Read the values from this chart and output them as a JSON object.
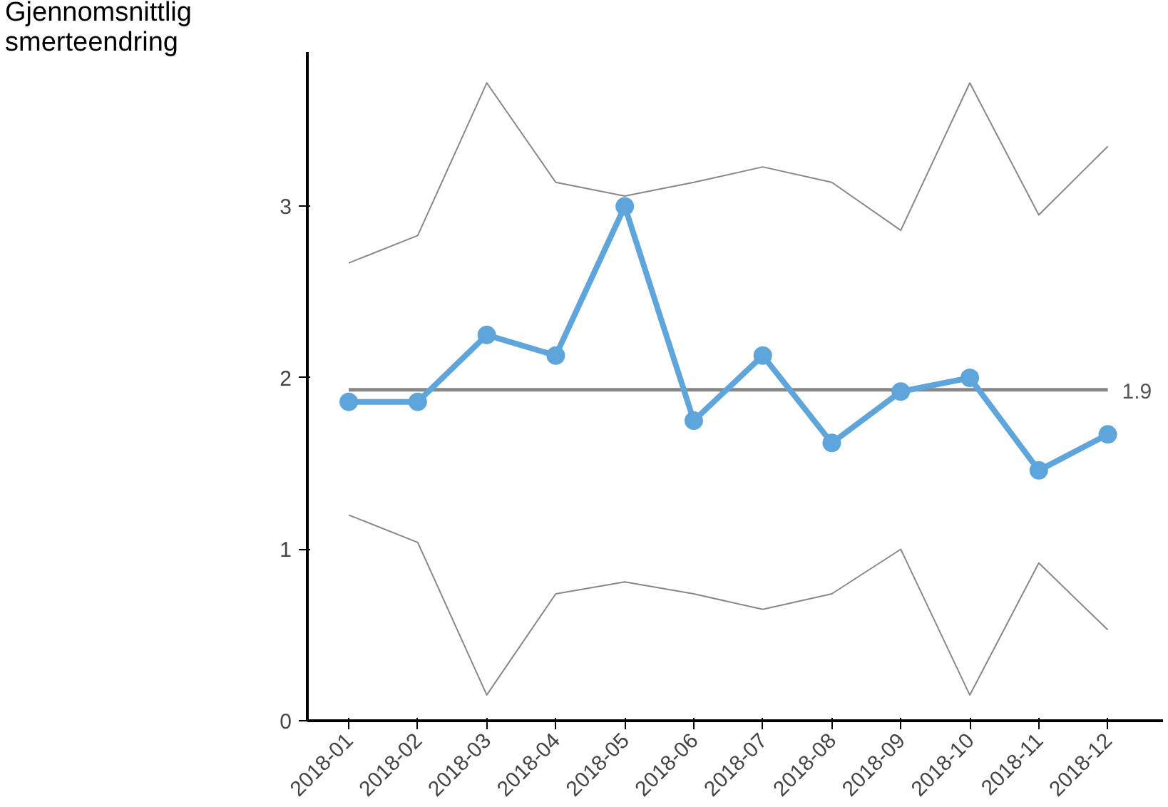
{
  "chart_data": {
    "type": "line",
    "ylabel": "Gjennomsnittlig\nsmerteendring",
    "categories": [
      "2018-01",
      "2018-02",
      "2018-03",
      "2018-04",
      "2018-05",
      "2018-06",
      "2018-07",
      "2018-08",
      "2018-09",
      "2018-10",
      "2018-11",
      "2018-12"
    ],
    "series": [
      {
        "color": "#5da5da",
        "marker": "circle",
        "values": [
          1.86,
          1.86,
          2.25,
          2.13,
          3.0,
          1.75,
          2.13,
          1.62,
          1.92,
          2.0,
          1.46,
          1.67
        ]
      },
      {
        "color": "#888888",
        "marker": "none",
        "values": [
          2.67,
          2.83,
          3.72,
          3.14,
          3.06,
          3.14,
          3.23,
          3.14,
          2.86,
          3.72,
          2.95,
          3.35
        ]
      },
      {
        "color": "#888888",
        "marker": "none",
        "values": [
          1.2,
          1.04,
          0.15,
          0.74,
          0.81,
          0.74,
          0.65,
          0.74,
          1.0,
          0.15,
          0.92,
          0.53
        ]
      }
    ],
    "ref_lines": [
      {
        "axis": "y",
        "value": 1.93,
        "label": "1.9",
        "color": "#888888"
      }
    ],
    "ylim": [
      0,
      3.9
    ],
    "yticks": [
      0,
      1,
      2,
      3
    ],
    "grid": false
  }
}
